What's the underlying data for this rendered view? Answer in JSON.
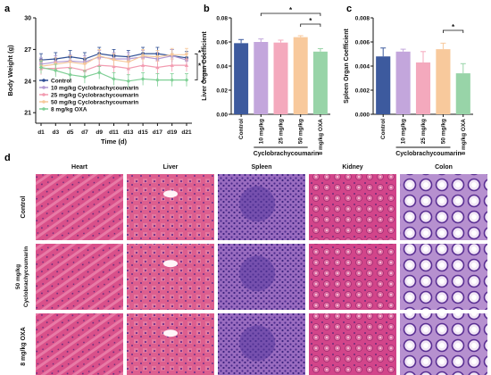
{
  "panel_labels": {
    "a": "a",
    "b": "b",
    "c": "c",
    "d": "d"
  },
  "chart_data": [
    {
      "panel": "a",
      "type": "line",
      "xlabel": "Time (d)",
      "ylabel": "Body Weight (g)",
      "ylim": [
        20,
        30
      ],
      "yticks": [
        "21",
        "24",
        "27",
        "30"
      ],
      "ytick_values": [
        21,
        24,
        27,
        30
      ],
      "x": [
        "d1",
        "d3",
        "d5",
        "d7",
        "d9",
        "d11",
        "d13",
        "d15",
        "d17",
        "d19",
        "d21"
      ],
      "xticks_shown": [
        "d1",
        "d3",
        "d5",
        "d7",
        "d9",
        "d11",
        "d13",
        "d15",
        "d17",
        "d19",
        "d21"
      ],
      "legend_position": "bottom-left",
      "series": [
        {
          "name": "Control",
          "color": "#2f4f94",
          "marker": "circle",
          "values": [
            26.0,
            26.1,
            26.3,
            26.1,
            26.6,
            26.4,
            26.3,
            26.6,
            26.6,
            26.4,
            26.2
          ]
        },
        {
          "name": "10 mg/kg Cyclobrachycoumarin",
          "color": "#b39ad3",
          "marker": "square",
          "values": [
            25.6,
            25.8,
            25.9,
            25.8,
            26.3,
            26.1,
            26.1,
            26.3,
            26.1,
            26.4,
            26.0
          ]
        },
        {
          "name": "25 mg/kg Cyclobrachycoumarin",
          "color": "#f29bb0",
          "marker": "triangle",
          "values": [
            25.2,
            25.2,
            25.3,
            25.0,
            25.5,
            25.4,
            25.2,
            25.5,
            25.3,
            25.5,
            25.5
          ]
        },
        {
          "name": "50 mg/kg Cyclobrachycoumarin",
          "color": "#f6c89a",
          "marker": "triangle-down",
          "values": [
            25.4,
            25.6,
            25.8,
            25.6,
            26.4,
            26.0,
            25.8,
            26.4,
            26.3,
            26.5,
            26.5
          ]
        },
        {
          "name": "8 mg/kg OXA",
          "color": "#7fcf95",
          "marker": "diamond",
          "values": [
            25.3,
            25.0,
            24.6,
            24.4,
            24.8,
            24.2,
            24.0,
            24.2,
            24.1,
            24.1,
            24.1
          ]
        }
      ],
      "error": 0.6,
      "significance": [
        "*",
        "*"
      ]
    },
    {
      "panel": "b",
      "type": "bar",
      "ylabel": "Liver Organ Coefficient",
      "ylim": [
        0,
        0.08
      ],
      "yticks": [
        "0.00",
        "0.02",
        "0.04",
        "0.06",
        "0.08"
      ],
      "ytick_values": [
        0,
        0.02,
        0.04,
        0.06,
        0.08
      ],
      "categories": [
        "Control",
        "10 mg/kg",
        "25 mg/kg",
        "50 mg/kg",
        "8 mg/kg OXA"
      ],
      "values": [
        0.059,
        0.06,
        0.0595,
        0.064,
        0.052
      ],
      "errors": [
        0.003,
        0.0025,
        0.002,
        0.0012,
        0.0025
      ],
      "colors": [
        "#3d5a9e",
        "#c3a6dc",
        "#f4a9bd",
        "#f8c99c",
        "#98d4a8"
      ],
      "group_label": "Cyclobrachycoumarin",
      "significance": [
        "*",
        "*"
      ]
    },
    {
      "panel": "c",
      "type": "bar",
      "ylabel": "Spleen Organ Coefficient",
      "ylim": [
        0,
        0.008
      ],
      "yticks": [
        "0.000",
        "0.002",
        "0.004",
        "0.006",
        "0.008"
      ],
      "ytick_values": [
        0,
        0.002,
        0.004,
        0.006,
        0.008
      ],
      "categories": [
        "Control",
        "10 mg/kg",
        "25 mg/kg",
        "50 mg/kg",
        "8 mg/kg OXA"
      ],
      "values": [
        0.0048,
        0.0052,
        0.0043,
        0.0054,
        0.0034
      ],
      "errors": [
        0.0007,
        0.0002,
        0.0009,
        0.0005,
        0.0008
      ],
      "colors": [
        "#3d5a9e",
        "#c3a6dc",
        "#f4a9bd",
        "#f8c99c",
        "#98d4a8"
      ],
      "group_label": "Cyclobrachycoumarin",
      "significance": [
        "*"
      ]
    }
  ],
  "histology": {
    "columns": [
      "Heart",
      "Liver",
      "Spleen",
      "Kidney",
      "Colon"
    ],
    "rows": [
      "Control",
      "50 mg/kg Cyclobrachycoumarin",
      "8 mg/kg OXA"
    ]
  }
}
